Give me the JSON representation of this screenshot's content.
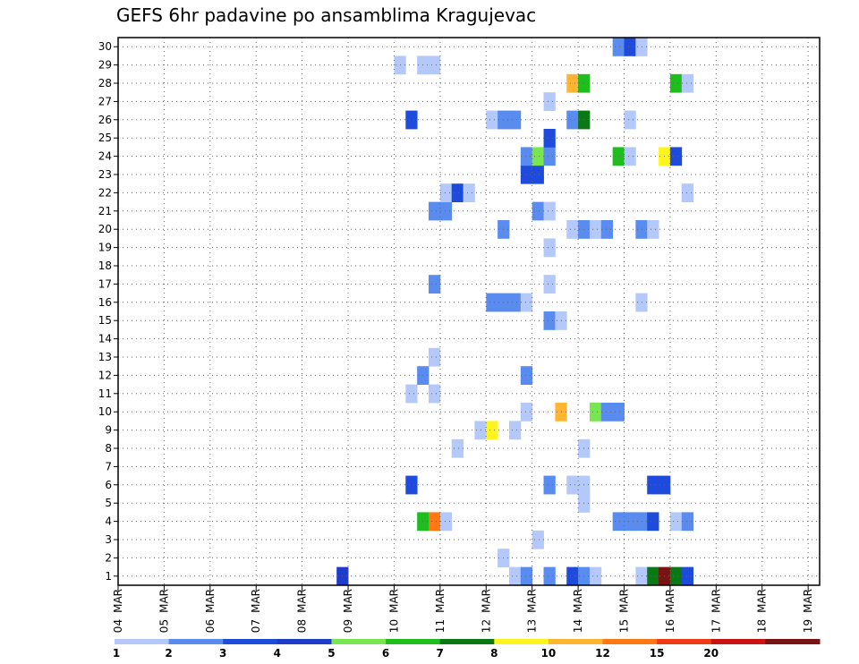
{
  "chart_data": {
    "type": "heatmap",
    "title": "GEFS 6hr padavine po ansamblima Kragujevac",
    "y_ticks": [
      "1",
      "2",
      "3",
      "4",
      "5",
      "6",
      "7",
      "8",
      "9",
      "10",
      "11",
      "12",
      "13",
      "14",
      "15",
      "16",
      "17",
      "18",
      "19",
      "20",
      "21",
      "22",
      "23",
      "24",
      "25",
      "26",
      "27",
      "28",
      "29",
      "30"
    ],
    "x_ticks": [
      "04 MAR",
      "05 MAR",
      "06 MAR",
      "07 MAR",
      "08 MAR",
      "09 MAR",
      "10 MAR",
      "11 MAR",
      "12 MAR",
      "13 MAR",
      "14 MAR",
      "15 MAR",
      "16 MAR",
      "17 MAR",
      "18 MAR",
      "19 MAR"
    ],
    "x_ticks_day": [
      "04",
      "05",
      "06",
      "07",
      "08",
      "09",
      "10",
      "11",
      "12",
      "13",
      "14",
      "15",
      "16",
      "17",
      "18",
      "19"
    ],
    "x_ticks_month": "MAR",
    "grid": true,
    "legend": {
      "placement": "bottom",
      "colors": [
        "#b4c8fa",
        "#5a8cf0",
        "#1e4bdc",
        "#1e3cc8",
        "#78e650",
        "#1ebe1e",
        "#0a7814",
        "#fff51e",
        "#ffb432",
        "#ff7814",
        "#f03c14",
        "#c81414",
        "#781414"
      ],
      "labels": [
        "1",
        "2",
        "3",
        "4",
        "5",
        "6",
        "7",
        "8",
        "10",
        "12",
        "15",
        "20"
      ]
    },
    "cells": [
      {
        "t": 4.75,
        "m": 0,
        "c": 3
      },
      {
        "t": 8.5,
        "m": 0,
        "c": 0
      },
      {
        "t": 8.75,
        "m": 0,
        "c": 1
      },
      {
        "t": 9.25,
        "m": 0,
        "c": 1
      },
      {
        "t": 9.75,
        "m": 0,
        "c": 2
      },
      {
        "t": 10,
        "m": 0,
        "c": 1
      },
      {
        "t": 10.25,
        "m": 0,
        "c": 0
      },
      {
        "t": 11.25,
        "m": 0,
        "c": 0
      },
      {
        "t": 11.5,
        "m": 0,
        "c": 6
      },
      {
        "t": 11.75,
        "m": 0,
        "c": 12
      },
      {
        "t": 12,
        "m": 0,
        "c": 6
      },
      {
        "t": 12.25,
        "m": 0,
        "c": 2
      },
      {
        "t": 8.25,
        "m": 1,
        "c": 0
      },
      {
        "t": 9,
        "m": 2,
        "c": 0
      },
      {
        "t": 6.5,
        "m": 3,
        "c": 5
      },
      {
        "t": 6.75,
        "m": 3,
        "c": 9
      },
      {
        "t": 7,
        "m": 3,
        "c": 0
      },
      {
        "t": 10.75,
        "m": 3,
        "c": 1
      },
      {
        "t": 11,
        "m": 3,
        "c": 1
      },
      {
        "t": 11.25,
        "m": 3,
        "c": 1
      },
      {
        "t": 11.5,
        "m": 3,
        "c": 2
      },
      {
        "t": 12,
        "m": 3,
        "c": 0
      },
      {
        "t": 12.25,
        "m": 3,
        "c": 1
      },
      {
        "t": 10,
        "m": 4,
        "c": 0
      },
      {
        "t": 6.25,
        "m": 5,
        "c": 2
      },
      {
        "t": 9.25,
        "m": 5,
        "c": 1
      },
      {
        "t": 9.75,
        "m": 5,
        "c": 0
      },
      {
        "t": 10,
        "m": 5,
        "c": 0
      },
      {
        "t": 11.5,
        "m": 5,
        "c": 2
      },
      {
        "t": 11.75,
        "m": 5,
        "c": 2
      },
      {
        "t": 7.25,
        "m": 7,
        "c": 0
      },
      {
        "t": 10,
        "m": 7,
        "c": 0
      },
      {
        "t": 7.75,
        "m": 8,
        "c": 0
      },
      {
        "t": 8,
        "m": 8,
        "c": 7
      },
      {
        "t": 8.5,
        "m": 8,
        "c": 0
      },
      {
        "t": 8.75,
        "m": 9,
        "c": 0
      },
      {
        "t": 9.5,
        "m": 9,
        "c": 8
      },
      {
        "t": 10.25,
        "m": 9,
        "c": 4
      },
      {
        "t": 10.5,
        "m": 9,
        "c": 1
      },
      {
        "t": 10.75,
        "m": 9,
        "c": 1
      },
      {
        "t": 6.25,
        "m": 10,
        "c": 0
      },
      {
        "t": 6.75,
        "m": 10,
        "c": 0
      },
      {
        "t": 6.5,
        "m": 11,
        "c": 1
      },
      {
        "t": 8.75,
        "m": 11,
        "c": 1
      },
      {
        "t": 6.75,
        "m": 12,
        "c": 0
      },
      {
        "t": 9.25,
        "m": 14,
        "c": 1
      },
      {
        "t": 9.5,
        "m": 14,
        "c": 0
      },
      {
        "t": 8,
        "m": 15,
        "c": 1
      },
      {
        "t": 8.25,
        "m": 15,
        "c": 1
      },
      {
        "t": 8.5,
        "m": 15,
        "c": 1
      },
      {
        "t": 8.75,
        "m": 15,
        "c": 0
      },
      {
        "t": 11.25,
        "m": 15,
        "c": 0
      },
      {
        "t": 6.75,
        "m": 16,
        "c": 1
      },
      {
        "t": 9.25,
        "m": 16,
        "c": 0
      },
      {
        "t": 9.25,
        "m": 18,
        "c": 0
      },
      {
        "t": 8.25,
        "m": 19,
        "c": 1
      },
      {
        "t": 9.75,
        "m": 19,
        "c": 0
      },
      {
        "t": 10,
        "m": 19,
        "c": 1
      },
      {
        "t": 10.25,
        "m": 19,
        "c": 0
      },
      {
        "t": 10.5,
        "m": 19,
        "c": 1
      },
      {
        "t": 11.25,
        "m": 19,
        "c": 1
      },
      {
        "t": 11.5,
        "m": 19,
        "c": 0
      },
      {
        "t": 6.75,
        "m": 20,
        "c": 1
      },
      {
        "t": 7,
        "m": 20,
        "c": 1
      },
      {
        "t": 9,
        "m": 20,
        "c": 1
      },
      {
        "t": 9.25,
        "m": 20,
        "c": 0
      },
      {
        "t": 7,
        "m": 21,
        "c": 0
      },
      {
        "t": 7.25,
        "m": 21,
        "c": 2
      },
      {
        "t": 7.5,
        "m": 21,
        "c": 0
      },
      {
        "t": 12.25,
        "m": 21,
        "c": 0
      },
      {
        "t": 8.75,
        "m": 22,
        "c": 2
      },
      {
        "t": 9,
        "m": 22,
        "c": 2
      },
      {
        "t": 8.75,
        "m": 23,
        "c": 1
      },
      {
        "t": 9,
        "m": 23,
        "c": 4
      },
      {
        "t": 9.25,
        "m": 23,
        "c": 1
      },
      {
        "t": 10.75,
        "m": 23,
        "c": 5
      },
      {
        "t": 11,
        "m": 23,
        "c": 0
      },
      {
        "t": 11.75,
        "m": 23,
        "c": 7
      },
      {
        "t": 12,
        "m": 23,
        "c": 2
      },
      {
        "t": 9.25,
        "m": 24,
        "c": 2
      },
      {
        "t": 6.25,
        "m": 25,
        "c": 2
      },
      {
        "t": 8,
        "m": 25,
        "c": 0
      },
      {
        "t": 8.25,
        "m": 25,
        "c": 1
      },
      {
        "t": 8.5,
        "m": 25,
        "c": 1
      },
      {
        "t": 9.75,
        "m": 25,
        "c": 1
      },
      {
        "t": 10,
        "m": 25,
        "c": 6
      },
      {
        "t": 11,
        "m": 25,
        "c": 0
      },
      {
        "t": 9.25,
        "m": 26,
        "c": 0
      },
      {
        "t": 9.75,
        "m": 27,
        "c": 8
      },
      {
        "t": 10,
        "m": 27,
        "c": 5
      },
      {
        "t": 12,
        "m": 27,
        "c": 5
      },
      {
        "t": 12.25,
        "m": 27,
        "c": 0
      },
      {
        "t": 6,
        "m": 28,
        "c": 0
      },
      {
        "t": 6.5,
        "m": 28,
        "c": 0
      },
      {
        "t": 6.75,
        "m": 28,
        "c": 0
      },
      {
        "t": 10.75,
        "m": 29,
        "c": 1
      },
      {
        "t": 11,
        "m": 29,
        "c": 2
      },
      {
        "t": 11.25,
        "m": 29,
        "c": 0
      }
    ]
  }
}
